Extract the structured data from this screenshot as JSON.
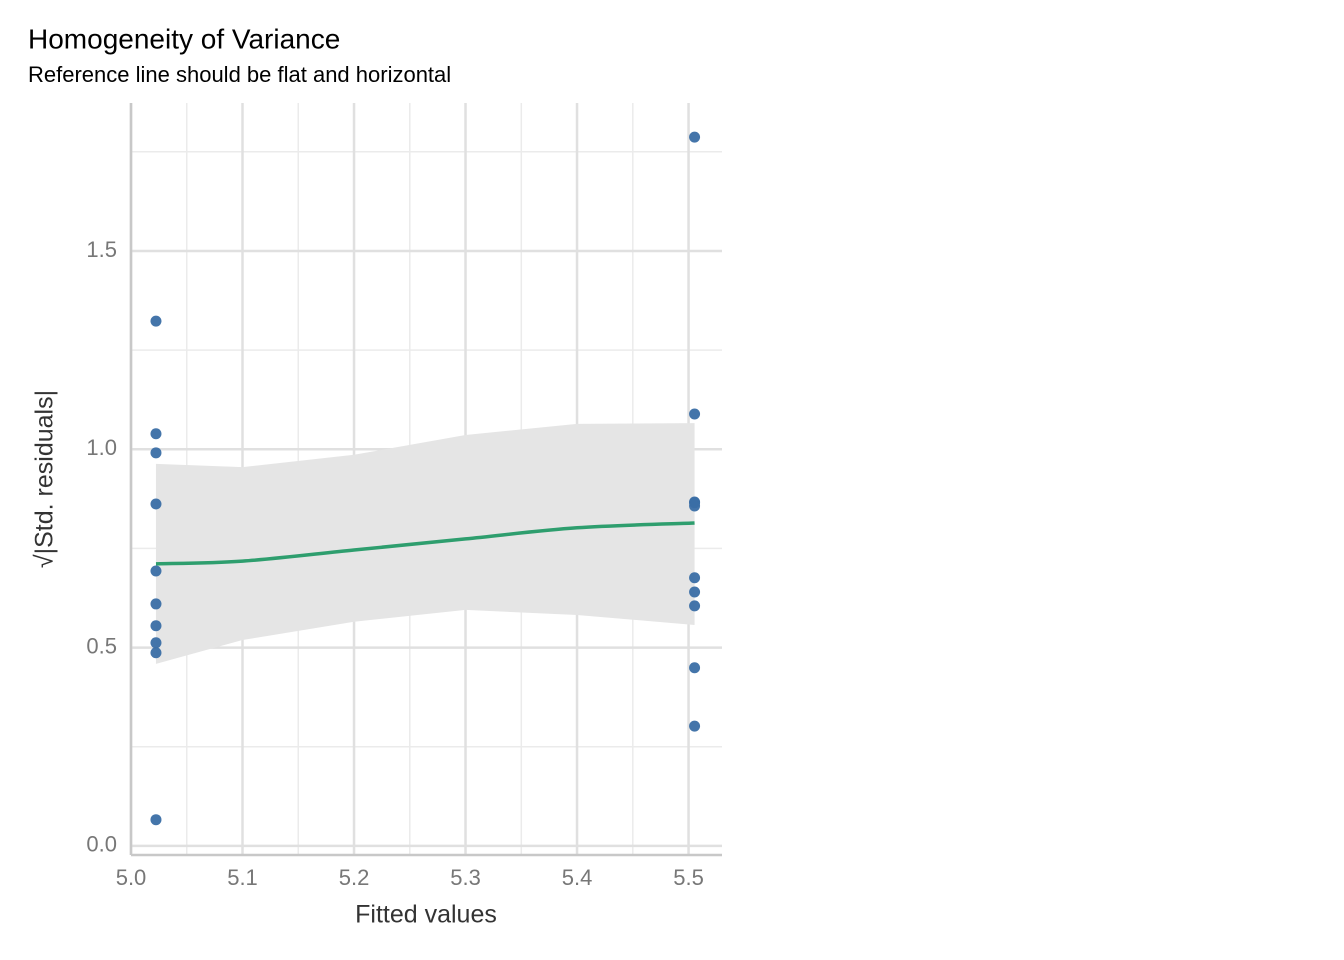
{
  "chart_data": {
    "type": "scatter",
    "title": "Homogeneity of Variance",
    "subtitle": "Reference line should be flat and horizontal",
    "x_label": "Fitted values",
    "y_label": "√|Std. residuals|",
    "xlim": [
      5.0,
      5.53
    ],
    "ylim": [
      -0.023,
      1.873
    ],
    "xticks": [
      {
        "value": 5.0,
        "label": "5.0"
      },
      5.1,
      5.2,
      5.3,
      5.4,
      5.5
    ],
    "yticks": [
      {
        "value": 0,
        "label": "0.0"
      },
      0.5,
      {
        "value": 1,
        "label": "1.0"
      },
      1.5
    ],
    "x_minor_ticks": [
      5.05,
      5.15,
      5.25,
      5.35,
      5.45
    ],
    "y_minor_ticks": [
      0.25,
      0.75,
      1.25,
      1.75
    ],
    "grid": true,
    "series": [
      {
        "color": "#3a6ea5",
        "x": [
          5.0224,
          5.0224,
          5.0224,
          5.0224,
          5.0224,
          5.0224,
          5.0224,
          5.0224,
          5.0224,
          5.0224,
          5.5054,
          5.5054,
          5.5054,
          5.5054,
          5.5054,
          5.5054,
          5.5054,
          5.5054,
          5.5054,
          5.5054
        ],
        "values": [
          1.323,
          1.039,
          0.991,
          0.862,
          0.693,
          0.61,
          0.555,
          0.512,
          0.487,
          0.066,
          1.787,
          1.089,
          0.867,
          0.865,
          0.857,
          0.676,
          0.64,
          0.605,
          0.449,
          0.302
        ]
      }
    ],
    "smooth": {
      "color": "#2e9e6e",
      "band_color": "#e5e5e5",
      "x": [
        5.0224,
        5.1,
        5.2,
        5.3,
        5.4,
        5.5054
      ],
      "values": [
        0.711,
        0.718,
        0.746,
        0.774,
        0.802,
        0.814
      ],
      "lower": [
        0.459,
        0.519,
        0.565,
        0.595,
        0.582,
        0.557
      ],
      "upper": [
        0.963,
        0.955,
        0.986,
        1.036,
        1.064,
        1.066
      ]
    }
  }
}
